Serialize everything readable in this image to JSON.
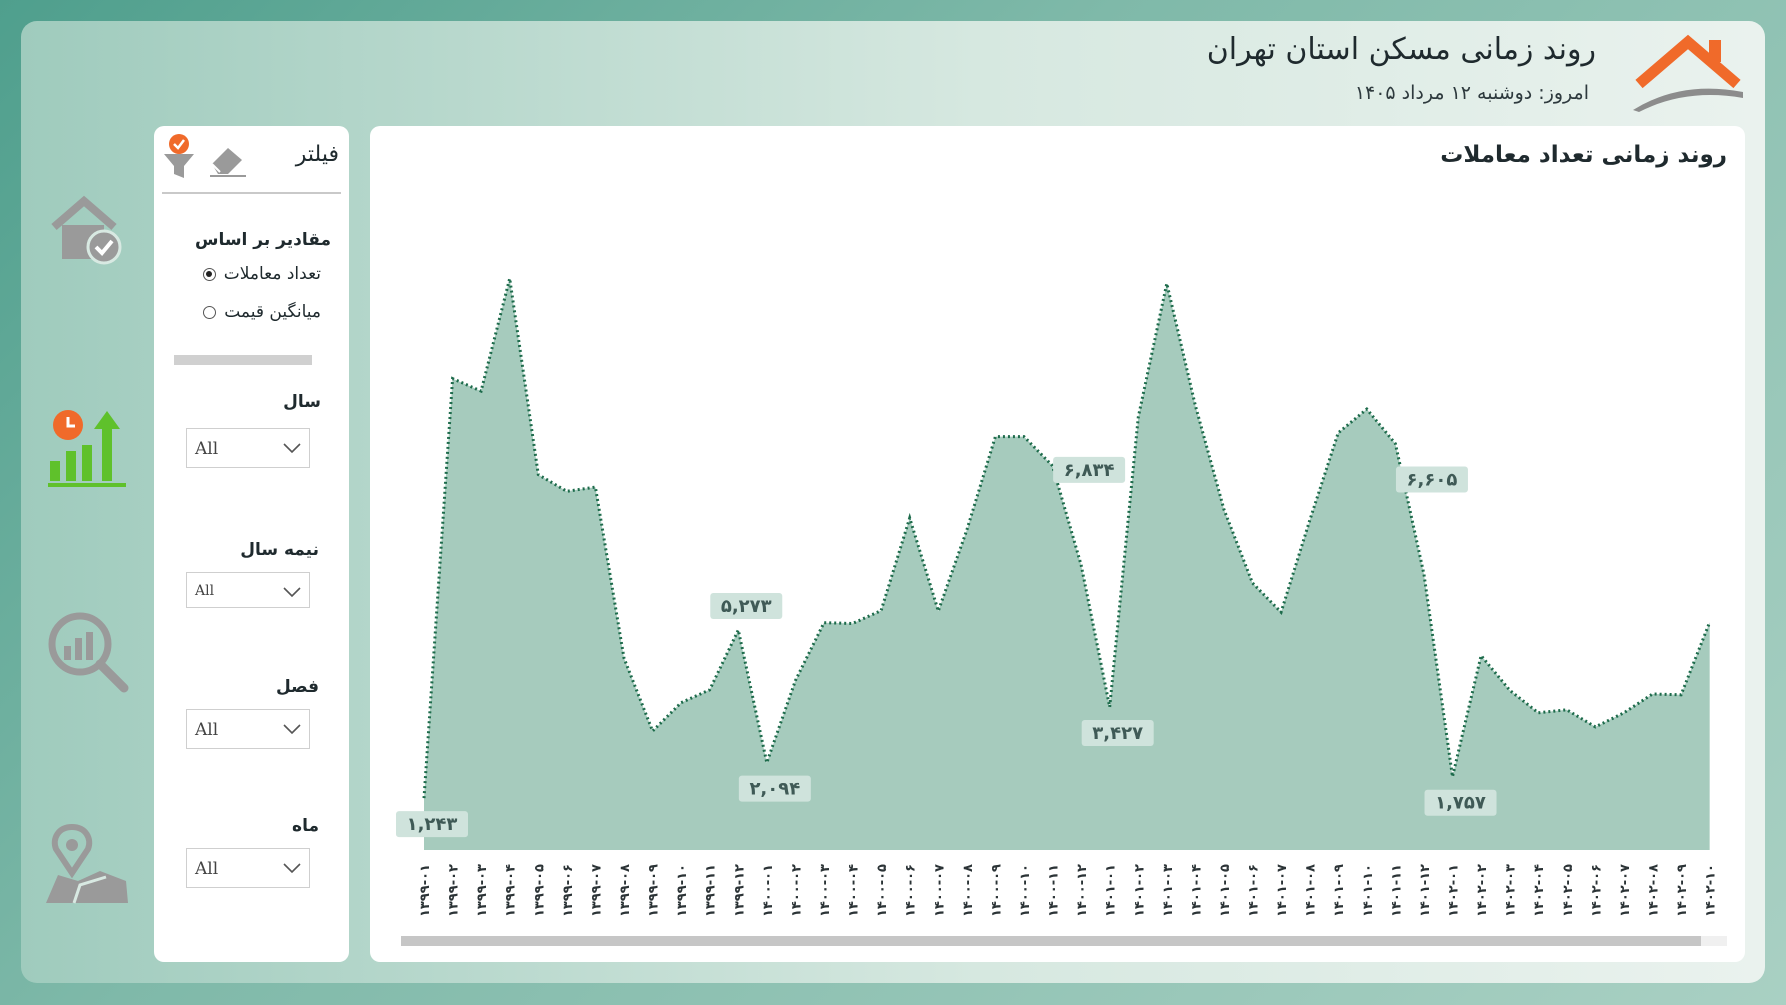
{
  "header": {
    "title": "روند زمانی مسکن استان تهران",
    "date": "امروز: دوشنبه ۱۲ مرداد ۱۴۰۵"
  },
  "colors": {
    "accent_orange": "#f06a2a",
    "accent_green": "#5fc12b",
    "area_fill": "#a6cbbd",
    "line": "#1d6b4b",
    "label_bg": "#cfe3dc"
  },
  "nav": {
    "items": [
      {
        "icon": "home-check-icon"
      },
      {
        "icon": "chart-trend-icon"
      },
      {
        "icon": "analysis-search-icon"
      },
      {
        "icon": "map-pin-icon"
      }
    ]
  },
  "filter": {
    "title": "فیلتر",
    "values_basis_label": "مقادیر بر اساس",
    "radio_count": "تعداد معاملات",
    "radio_price": "میانگین قیمت",
    "year_label": "سال",
    "year_value": "All",
    "half_label": "نیمه سال",
    "half_value": "All",
    "season_label": "فصل",
    "season_value": "All",
    "month_label": "ماه",
    "month_value": "All"
  },
  "chart_title": "روند زمانی تعداد معاملات",
  "chart_data": {
    "type": "area",
    "title": "روند زمانی تعداد معاملات",
    "categories": [
      "۱۳۹۹-۰۱",
      "۱۳۹۹-۰۲",
      "۱۳۹۹-۰۳",
      "۱۳۹۹-۰۴",
      "۱۳۹۹-۰۵",
      "۱۳۹۹-۰۶",
      "۱۳۹۹-۰۷",
      "۱۳۹۹-۰۸",
      "۱۳۹۹-۰۹",
      "۱۳۹۹-۱۰",
      "۱۳۹۹-۱۱",
      "۱۳۹۹-۱۲",
      "۱۴۰۰-۰۱",
      "۱۴۰۰-۰۲",
      "۱۴۰۰-۰۳",
      "۱۴۰۰-۰۴",
      "۱۴۰۰-۰۵",
      "۱۴۰۰-۰۶",
      "۱۴۰۰-۰۷",
      "۱۴۰۰-۰۸",
      "۱۴۰۰-۰۹",
      "۱۴۰۰-۱۰",
      "۱۴۰۰-۱۱",
      "۱۴۰۰-۱۲",
      "۱۴۰۱-۰۱",
      "۱۴۰۱-۰۲",
      "۱۴۰۱-۰۳",
      "۱۴۰۱-۰۴",
      "۱۴۰۱-۰۵",
      "۱۴۰۱-۰۶",
      "۱۴۰۱-۰۷",
      "۱۴۰۱-۰۸",
      "۱۴۰۱-۰۹",
      "۱۴۰۱-۱۰",
      "۱۴۰۱-۱۱",
      "۱۴۰۱-۱۲",
      "۱۴۰۲-۰۱",
      "۱۴۰۲-۰۲",
      "۱۴۰۲-۰۳",
      "۱۴۰۲-۰۴",
      "۱۴۰۲-۰۵",
      "۱۴۰۲-۰۶",
      "۱۴۰۲-۰۷",
      "۱۴۰۲-۰۸",
      "۱۴۰۲-۰۹",
      "۱۴۰۲-۱۰"
    ],
    "values": [
      1243,
      11300,
      11000,
      13700,
      9000,
      8600,
      8700,
      4600,
      2850,
      3530,
      3840,
      5273,
      2094,
      4060,
      5450,
      5430,
      5740,
      7960,
      5730,
      7670,
      9910,
      9910,
      9210,
      6834,
      3427,
      10380,
      13580,
      10650,
      8160,
      6400,
      5700,
      7900,
      10000,
      10570,
      9740,
      6605,
      1757,
      4660,
      3830,
      3290,
      3360,
      2950,
      3290,
      3740,
      3720,
      5460
    ],
    "data_labels": [
      {
        "index": 0,
        "text": "۱,۲۴۳"
      },
      {
        "index": 11,
        "text": "۵,۲۷۳"
      },
      {
        "index": 12,
        "text": "۲,۰۹۴"
      },
      {
        "index": 23,
        "text": "۶,۸۳۴"
      },
      {
        "index": 24,
        "text": "۳,۴۲۷"
      },
      {
        "index": 35,
        "text": "۶,۶۰۵"
      },
      {
        "index": 36,
        "text": "۱,۷۵۷"
      }
    ],
    "ylim": [
      0,
      14000
    ],
    "grid": false,
    "legend": "none"
  }
}
